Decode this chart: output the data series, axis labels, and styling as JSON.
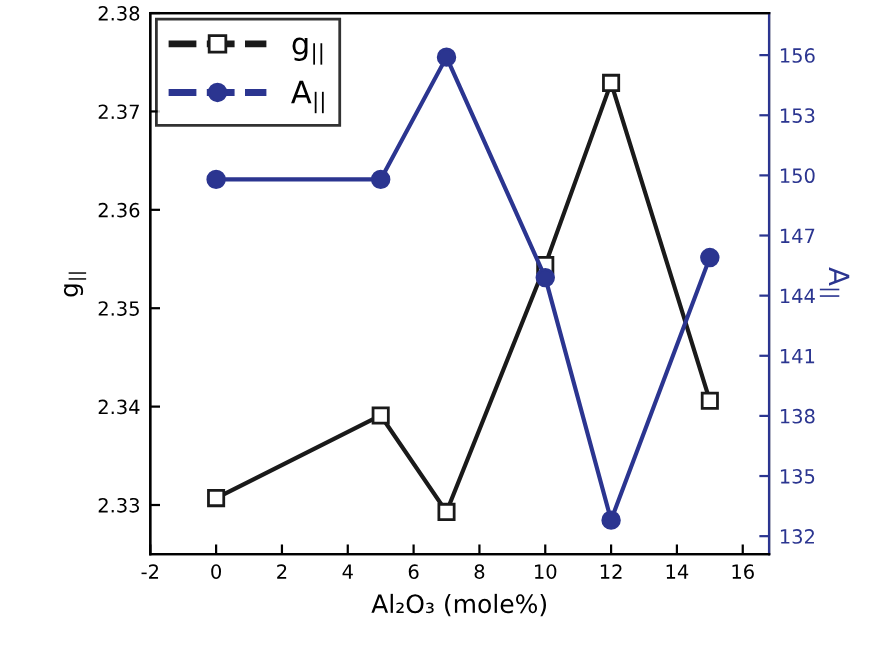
{
  "chart_data": {
    "type": "line",
    "xlabel": "Al₂O₃ (mole%)",
    "ylabel": "g$_{||}$",
    "y2label": "A$_{||}$",
    "x": [
      0,
      5,
      7,
      10,
      12,
      15
    ],
    "series": [
      {
        "name": "g$_{||}$",
        "color": "#1a1a1a",
        "marker": "square",
        "values": [
          2.3307,
          2.3391,
          2.3293,
          2.3544,
          2.3729,
          2.3406
        ]
      },
      {
        "name": "A$_{||}$",
        "color": "#2b3590",
        "marker": "circle",
        "axis": "y2",
        "values": [
          149.8,
          149.8,
          155.9,
          144.9,
          132.8,
          145.9
        ]
      }
    ],
    "xlim": [
      -2,
      16.8
    ],
    "xticks": [
      -2,
      0,
      2,
      4,
      6,
      8,
      10,
      12,
      14,
      16
    ],
    "ylim": [
      2.325,
      2.38
    ],
    "yticks": [
      2.33,
      2.34,
      2.35,
      2.36,
      2.37,
      2.38
    ],
    "y2lim": [
      131.1,
      158.1
    ],
    "y2ticks": [
      132,
      135,
      138,
      141,
      144,
      147,
      150,
      153,
      156
    ],
    "legend": "top left",
    "grid": false
  }
}
